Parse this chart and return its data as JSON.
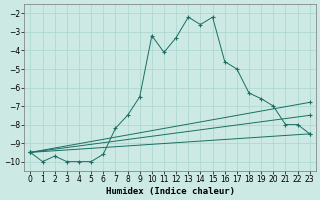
{
  "xlabel": "Humidex (Indice chaleur)",
  "bg_color": "#cce9e4",
  "grid_color": "#b0d8d2",
  "line_color": "#1a6e63",
  "xlim": [
    -0.5,
    23.5
  ],
  "ylim": [
    -10.5,
    -1.5
  ],
  "xticks": [
    0,
    1,
    2,
    3,
    4,
    5,
    6,
    7,
    8,
    9,
    10,
    11,
    12,
    13,
    14,
    15,
    16,
    17,
    18,
    19,
    20,
    21,
    22,
    23
  ],
  "yticks": [
    -2,
    -3,
    -4,
    -5,
    -6,
    -7,
    -8,
    -9,
    -10
  ],
  "series1_x": [
    0,
    1,
    2,
    3,
    4,
    5,
    6,
    7,
    8,
    9,
    10,
    11,
    12,
    13,
    14,
    15,
    16,
    17,
    18,
    19,
    20,
    21,
    22,
    23
  ],
  "series1_y": [
    -9.5,
    -10.0,
    -9.7,
    -10.0,
    -10.0,
    -10.0,
    -9.6,
    -8.2,
    -7.5,
    -6.5,
    -3.2,
    -4.1,
    -3.3,
    -2.2,
    -2.6,
    -2.2,
    -4.6,
    -5.0,
    -6.3,
    -6.6,
    -7.0,
    -8.0,
    -8.0,
    -8.5
  ],
  "line2_x0": 0,
  "line2_y0": -9.5,
  "line2_x1": 23,
  "line2_y1": -6.8,
  "line3_x0": 0,
  "line3_y0": -9.5,
  "line3_x1": 23,
  "line3_y1": -7.5,
  "line4_x0": 0,
  "line4_y0": -9.5,
  "line4_x1": 23,
  "line4_y1": -8.5
}
